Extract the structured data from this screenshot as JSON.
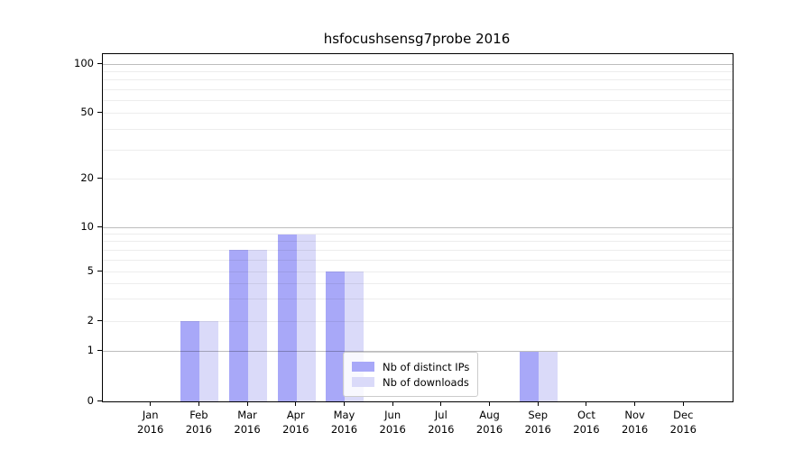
{
  "chart_data": {
    "type": "bar",
    "title": "hsfocushsensg7probe 2016",
    "categories": [
      "Jan 2016",
      "Feb 2016",
      "Mar 2016",
      "Apr 2016",
      "May 2016",
      "Jun 2016",
      "Jul 2016",
      "Aug 2016",
      "Sep 2016",
      "Oct 2016",
      "Nov 2016",
      "Dec 2016"
    ],
    "series": [
      {
        "name": "Nb of distinct IPs",
        "color": "#a8a8f8",
        "values": [
          0,
          2,
          7,
          9,
          5,
          0,
          0,
          0,
          1,
          0,
          0,
          0
        ]
      },
      {
        "name": "Nb of downloads",
        "color": "#dadaf9",
        "values": [
          0,
          2,
          7,
          9,
          5,
          0,
          0,
          0,
          1,
          0,
          0,
          0
        ]
      }
    ],
    "yticks": [
      0,
      1,
      2,
      5,
      10,
      20,
      50,
      100
    ],
    "ylim": [
      0,
      115
    ],
    "xlabel": "",
    "ylabel": "",
    "y_scale": "log-like above 1, linear 0-1",
    "grid": "horizontal major and minor",
    "legend_position": "inside, lower center-right"
  }
}
